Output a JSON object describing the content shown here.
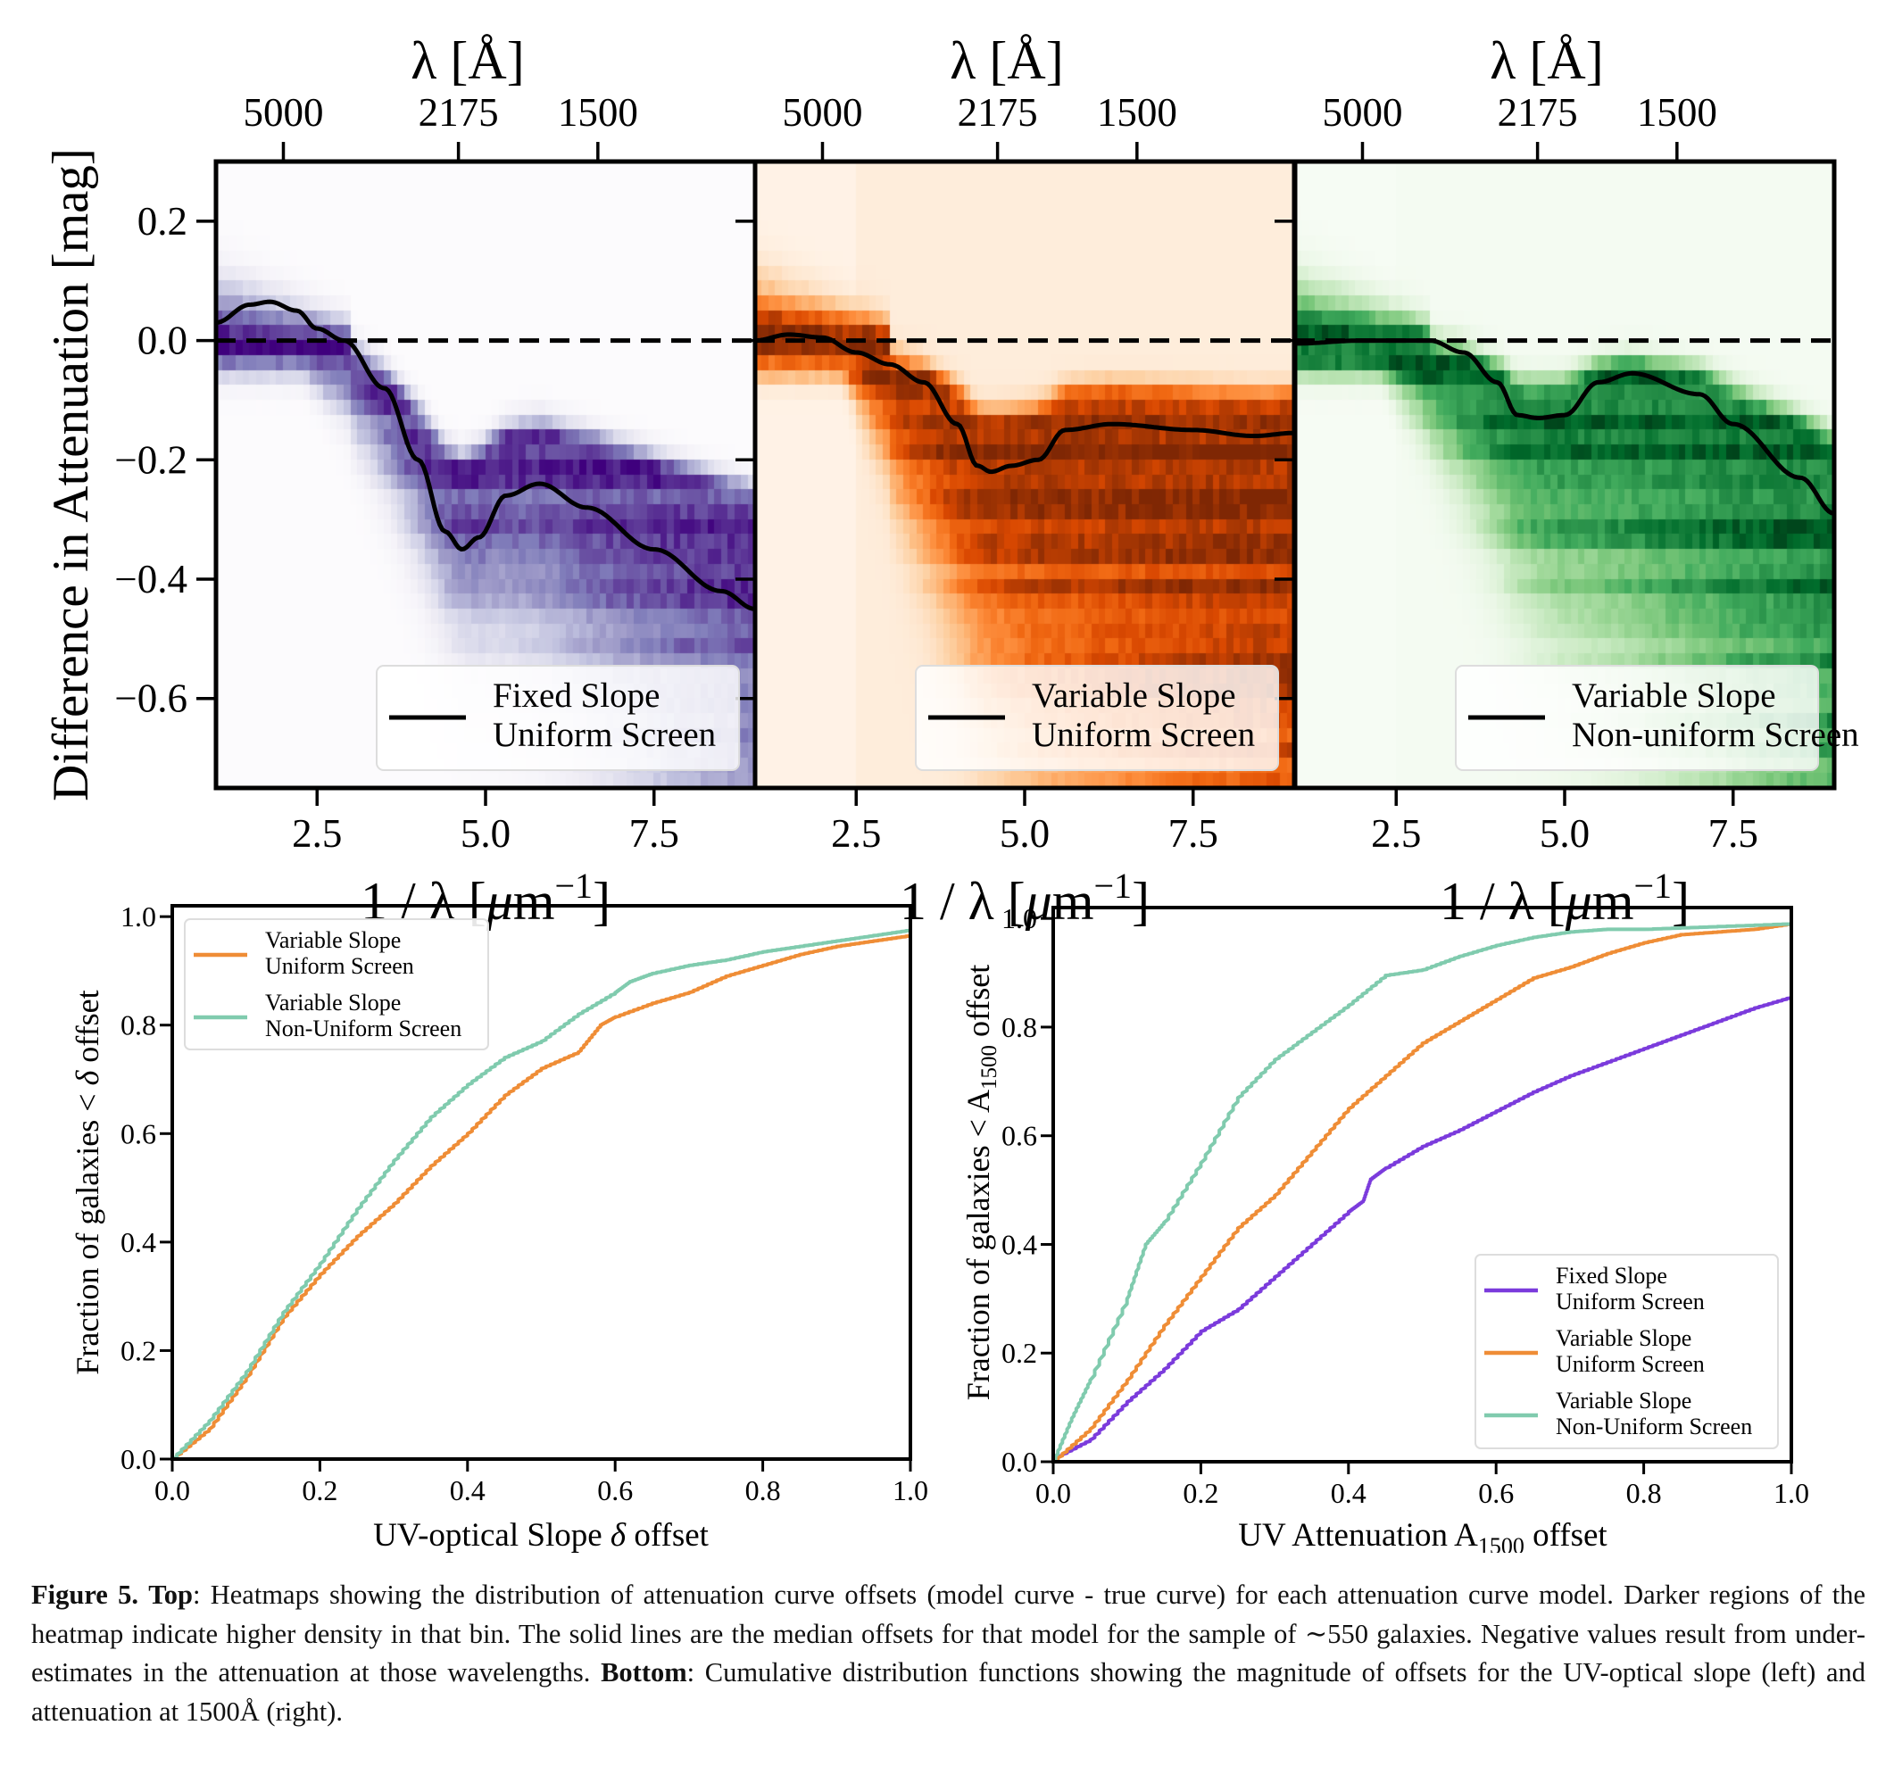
{
  "top_panels": {
    "top_axis_label": "λ [Å]",
    "bottom_axis_label_parts": [
      "1 / λ [",
      "μ",
      "m",
      "−1",
      "]"
    ],
    "ylabel": "Difference in Attenuation [mag]",
    "xlim": [
      1,
      9
    ],
    "ylim": [
      -0.75,
      0.3
    ],
    "xticks": [
      2.5,
      5.0,
      7.5
    ],
    "xtick_labels": [
      "2.5",
      "5.0",
      "7.5"
    ],
    "yticks": [
      0.2,
      0.0,
      -0.2,
      -0.4,
      -0.6
    ],
    "ytick_labels": [
      "0.2",
      "0.0",
      "−0.2",
      "−0.4",
      "−0.6"
    ],
    "top_ticks_angstrom": [
      5000,
      2175,
      1500
    ],
    "top_tick_labels": [
      "5000",
      "2175",
      "1500"
    ],
    "reference_line": {
      "y": 0.0,
      "style": "dashed",
      "color": "#000000"
    }
  },
  "chart_data": [
    {
      "type": "heatmap",
      "panel": "top-left",
      "legend": [
        "Fixed Slope",
        "Uniform Screen"
      ],
      "legend_placement": "lower-right",
      "colormap_colors": [
        "#fcfbfd",
        "#efedf5",
        "#dadaeb",
        "#bcbddc",
        "#9e9ac8",
        "#807dba",
        "#6a51a3",
        "#54278f",
        "#3f007d"
      ],
      "median_line": {
        "x": [
          1.0,
          1.5,
          1.8,
          2.2,
          2.5,
          2.9,
          3.5,
          4.0,
          4.4,
          4.65,
          4.9,
          5.3,
          5.8,
          6.5,
          7.5,
          8.5,
          9.0
        ],
        "y": [
          0.03,
          0.06,
          0.065,
          0.05,
          0.02,
          0.0,
          -0.08,
          -0.2,
          -0.32,
          -0.35,
          -0.33,
          -0.26,
          -0.24,
          -0.28,
          -0.35,
          -0.42,
          -0.45
        ]
      }
    },
    {
      "type": "heatmap",
      "panel": "top-middle",
      "legend": [
        "Variable Slope",
        "Uniform Screen"
      ],
      "legend_placement": "lower-right",
      "colormap_colors": [
        "#fff5eb",
        "#fee6ce",
        "#fdd0a2",
        "#fdae6b",
        "#fd8d3c",
        "#f16913",
        "#d94801",
        "#a63603",
        "#7f2704"
      ],
      "median_line": {
        "x": [
          1.0,
          1.5,
          2.0,
          2.5,
          3.0,
          3.5,
          4.0,
          4.3,
          4.5,
          4.8,
          5.2,
          5.6,
          6.3,
          7.5,
          8.4,
          9.0
        ],
        "y": [
          0.0,
          0.01,
          0.005,
          -0.02,
          -0.04,
          -0.07,
          -0.14,
          -0.21,
          -0.22,
          -0.21,
          -0.2,
          -0.15,
          -0.14,
          -0.15,
          -0.16,
          -0.155
        ]
      }
    },
    {
      "type": "heatmap",
      "panel": "top-right",
      "legend": [
        "Variable Slope",
        "Non-uniform Screen"
      ],
      "legend_placement": "lower-right",
      "colormap_colors": [
        "#f7fcf5",
        "#e5f5e0",
        "#c7e9c0",
        "#a1d99b",
        "#74c476",
        "#41ab5d",
        "#238b45",
        "#006d2c",
        "#00441b"
      ],
      "median_line": {
        "x": [
          1.0,
          2.0,
          3.0,
          3.5,
          4.0,
          4.3,
          4.6,
          5.0,
          5.5,
          6.0,
          7.0,
          7.5,
          8.5,
          9.0
        ],
        "y": [
          -0.005,
          0.0,
          0.0,
          -0.02,
          -0.07,
          -0.125,
          -0.13,
          -0.125,
          -0.07,
          -0.055,
          -0.09,
          -0.14,
          -0.23,
          -0.29
        ]
      }
    },
    {
      "type": "line",
      "panel": "bottom-left",
      "xlabel_parts": [
        "UV-optical Slope ",
        "δ",
        " offset"
      ],
      "ylabel_parts": [
        "Fraction of galaxies < ",
        "δ",
        " offset"
      ],
      "xlim": [
        0,
        1
      ],
      "ylim": [
        0,
        1.02
      ],
      "xticks": [
        "0.0",
        "0.2",
        "0.4",
        "0.6",
        "0.8",
        "1.0"
      ],
      "yticks": [
        "0.0",
        "0.2",
        "0.4",
        "0.6",
        "0.8",
        "1.0"
      ],
      "legend_placement": "upper-left",
      "series": [
        {
          "name": [
            "Variable Slope",
            "Uniform Screen"
          ],
          "color": "#ef8d36",
          "x": [
            0,
            0.05,
            0.1,
            0.15,
            0.2,
            0.25,
            0.3,
            0.35,
            0.4,
            0.45,
            0.5,
            0.55,
            0.58,
            0.6,
            0.65,
            0.7,
            0.75,
            0.8,
            0.85,
            0.9,
            0.95,
            1.0
          ],
          "y": [
            0,
            0.055,
            0.15,
            0.26,
            0.34,
            0.41,
            0.47,
            0.54,
            0.6,
            0.67,
            0.72,
            0.75,
            0.8,
            0.815,
            0.84,
            0.86,
            0.89,
            0.91,
            0.93,
            0.945,
            0.955,
            0.965
          ]
        },
        {
          "name": [
            "Variable Slope",
            "Non-Uniform Screen"
          ],
          "color": "#80cbae",
          "x": [
            0,
            0.05,
            0.1,
            0.15,
            0.2,
            0.25,
            0.3,
            0.35,
            0.4,
            0.45,
            0.5,
            0.55,
            0.6,
            0.62,
            0.65,
            0.7,
            0.75,
            0.8,
            0.85,
            0.9,
            0.95,
            1.0
          ],
          "y": [
            0,
            0.07,
            0.16,
            0.27,
            0.36,
            0.46,
            0.55,
            0.63,
            0.69,
            0.74,
            0.77,
            0.82,
            0.86,
            0.88,
            0.895,
            0.91,
            0.92,
            0.935,
            0.945,
            0.955,
            0.965,
            0.975
          ]
        }
      ]
    },
    {
      "type": "line",
      "panel": "bottom-right",
      "xlabel_parts": [
        "UV Attenuation A",
        "1500",
        " offset"
      ],
      "ylabel_parts": [
        "Fraction of galaxies < A",
        "1500",
        "  offset"
      ],
      "xlim": [
        0,
        1
      ],
      "ylim": [
        0,
        1.02
      ],
      "xticks": [
        "0.0",
        "0.2",
        "0.4",
        "0.6",
        "0.8",
        "1.0"
      ],
      "yticks": [
        "0.0",
        "0.2",
        "0.4",
        "0.6",
        "0.8",
        "1.0"
      ],
      "legend_placement": "lower-right",
      "series": [
        {
          "name": [
            "Fixed Slope",
            "Uniform Screen"
          ],
          "color": "#7b3bdc",
          "x": [
            0,
            0.05,
            0.1,
            0.15,
            0.2,
            0.25,
            0.3,
            0.35,
            0.4,
            0.42,
            0.43,
            0.45,
            0.5,
            0.55,
            0.6,
            0.65,
            0.7,
            0.75,
            0.8,
            0.85,
            0.9,
            0.95,
            1.0
          ],
          "y": [
            0.005,
            0.04,
            0.11,
            0.17,
            0.24,
            0.28,
            0.34,
            0.4,
            0.46,
            0.48,
            0.52,
            0.54,
            0.58,
            0.61,
            0.645,
            0.68,
            0.71,
            0.735,
            0.76,
            0.785,
            0.81,
            0.835,
            0.855
          ]
        },
        {
          "name": [
            "Variable Slope",
            "Uniform Screen"
          ],
          "color": "#ef8d36",
          "x": [
            0,
            0.05,
            0.1,
            0.15,
            0.2,
            0.25,
            0.3,
            0.35,
            0.4,
            0.45,
            0.5,
            0.55,
            0.6,
            0.65,
            0.7,
            0.75,
            0.8,
            0.85,
            0.9,
            0.95,
            1.0
          ],
          "y": [
            0,
            0.06,
            0.15,
            0.25,
            0.34,
            0.43,
            0.49,
            0.57,
            0.65,
            0.71,
            0.77,
            0.81,
            0.85,
            0.89,
            0.91,
            0.935,
            0.955,
            0.97,
            0.975,
            0.98,
            0.99
          ]
        },
        {
          "name": [
            "Variable Slope",
            "Non-Uniform Screen"
          ],
          "color": "#80cbae",
          "x": [
            0,
            0.025,
            0.05,
            0.1,
            0.125,
            0.15,
            0.2,
            0.25,
            0.3,
            0.35,
            0.4,
            0.45,
            0.5,
            0.55,
            0.6,
            0.65,
            0.7,
            0.75,
            0.8,
            0.9,
            1.0
          ],
          "y": [
            0,
            0.08,
            0.15,
            0.3,
            0.4,
            0.44,
            0.55,
            0.67,
            0.74,
            0.79,
            0.84,
            0.895,
            0.905,
            0.93,
            0.95,
            0.965,
            0.975,
            0.98,
            0.98,
            0.985,
            0.99
          ]
        }
      ]
    }
  ],
  "caption": {
    "figure_label": "Figure 5.",
    "top_label": "Top",
    "top_text": ": Heatmaps showing the distribution of attenuation curve offsets (model curve - true curve) for each attenuation curve model. Darker regions of the heatmap indicate higher density in that bin. The solid lines are the median offsets for that model for the sample of ∼550 galaxies. Negative values result from under-estimates in the attenuation at those wavelengths.",
    "bottom_label": "Bottom",
    "bottom_text": ": Cumulative distribution functions showing the magnitude of offsets for the UV-optical slope (left) and attenuation at 1500Å (right)."
  }
}
